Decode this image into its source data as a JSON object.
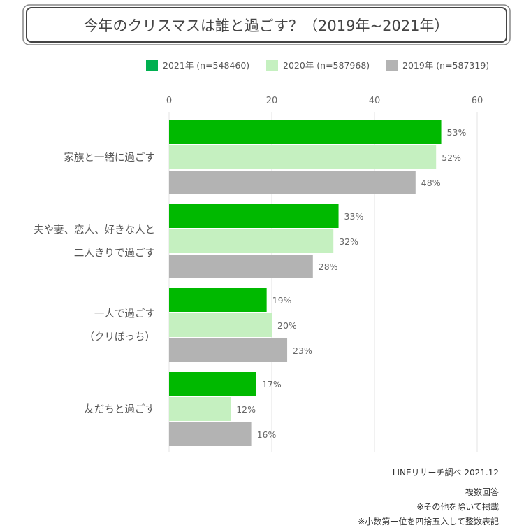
{
  "chart_data": {
    "type": "bar",
    "orientation": "horizontal",
    "title": "今年のクリスマスは誰と過ごす？（2019年~2021年）",
    "categories": [
      [
        "家族と一緒に過ごす"
      ],
      [
        "夫や妻、恋人、好きな人と",
        "二人きりで過ごす"
      ],
      [
        "一人で過ごす",
        "（クリぼっち）"
      ],
      [
        "友だちと過ごす"
      ]
    ],
    "series": [
      {
        "name": "2021年 (n=548460)",
        "color": "#00b900",
        "values": [
          53,
          33,
          19,
          17
        ],
        "labels": [
          "53%",
          "33%",
          "19%",
          "17%"
        ]
      },
      {
        "name": "2020年 (n=587968)",
        "color": "#c5f0c0",
        "values": [
          52,
          32,
          20,
          12
        ],
        "labels": [
          "52%",
          "32%",
          "20%",
          "12%"
        ]
      },
      {
        "name": "2019年 (n=587319)",
        "color": "#b3b3b3",
        "values": [
          48,
          28,
          23,
          16
        ],
        "labels": [
          "48%",
          "28%",
          "23%",
          "16%"
        ]
      }
    ],
    "xlim": [
      0,
      60
    ],
    "xticks": [
      0,
      20,
      40,
      60
    ],
    "xtick_labels": [
      "0",
      "20",
      "40",
      "60"
    ],
    "grid": true,
    "legend_position": "top-right",
    "legend_marker_colors": [
      "#00b050",
      "#c5f0c0",
      "#b3b3b3"
    ]
  },
  "footnotes": [
    "LINEリサーチ調べ 2021.12",
    "複数回答",
    "※その他を除いて掲載",
    "※小数第一位を四捨五入して整数表記"
  ]
}
